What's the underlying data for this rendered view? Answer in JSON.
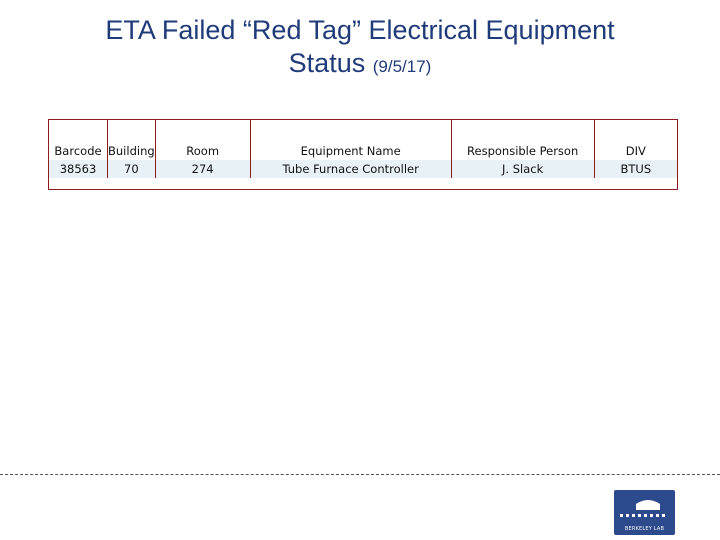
{
  "title": {
    "line1": "ETA Failed “Red Tag” Electrical Equipment",
    "line2": "Status",
    "date": "(9/5/17)"
  },
  "table": {
    "headers": [
      "Barcode",
      "Building",
      "Room",
      "Equipment Name",
      "Responsible Person",
      "DIV"
    ],
    "rows": [
      [
        "38563",
        "70",
        "274",
        "Tube Furnace Controller",
        "J. Slack",
        "BTUS"
      ]
    ]
  },
  "logo": {
    "text": "BERKELEY LAB"
  }
}
